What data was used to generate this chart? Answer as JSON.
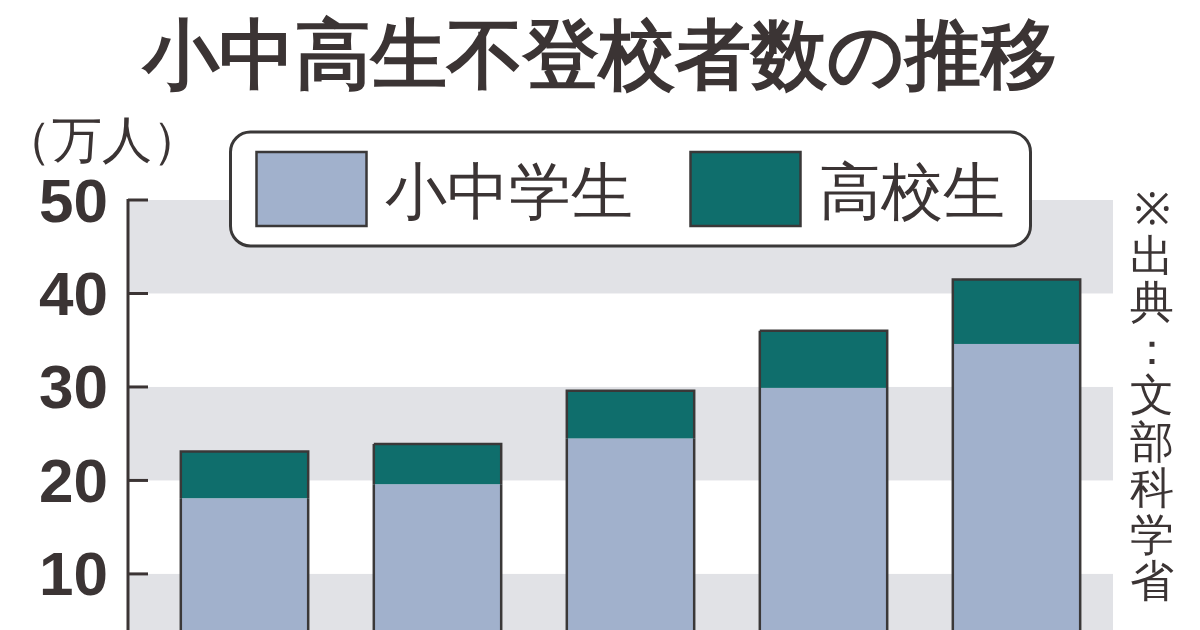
{
  "chart_data": {
    "type": "bar",
    "stacked": true,
    "title": "小中高生不登校者数の推移",
    "ylabel": "（万人）",
    "categories": [
      null,
      null,
      null,
      null,
      null
    ],
    "series": [
      {
        "name": "小中学生",
        "color": "#a1b1cc",
        "values": [
          18.1,
          19.6,
          24.5,
          29.9,
          34.6
        ]
      },
      {
        "name": "高校生",
        "color": "#0f6e6c",
        "values": [
          5.0,
          4.3,
          5.1,
          6.1,
          6.9
        ]
      }
    ],
    "ylim": [
      4,
      50
    ],
    "yticks": [
      10,
      20,
      30,
      40,
      50
    ],
    "tick_labels": "y",
    "bands": [
      {
        "axis": "y",
        "from": 40,
        "to": 50,
        "color": "#e1e2e6"
      },
      {
        "axis": "y",
        "from": 20,
        "to": 30,
        "color": "#e1e2e6"
      },
      {
        "axis": "y",
        "from": 0,
        "to": 10,
        "color": "#e1e2e6"
      }
    ],
    "legend": "top",
    "annotations": [
      "※出典：文部科学省"
    ]
  }
}
